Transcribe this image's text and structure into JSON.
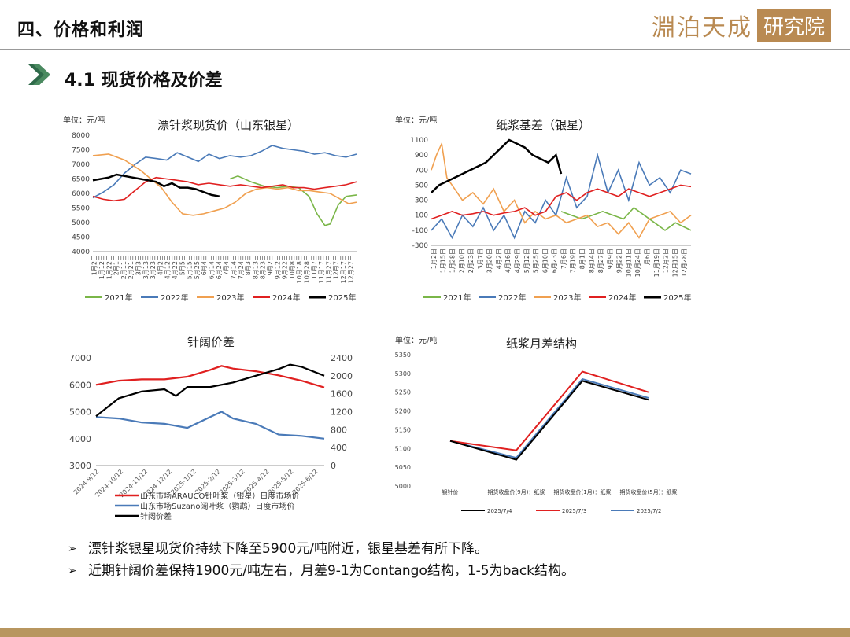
{
  "header": {
    "title": "四、价格和利润",
    "brand_script": "淵泊天成",
    "brand_box": "研究院"
  },
  "section": {
    "title": "4.1 现货价格及价差"
  },
  "colors": {
    "y2021": "#7ab648",
    "y2022": "#4a7ab8",
    "y2023": "#f0a050",
    "y2024": "#e02020",
    "y2025": "#000000",
    "brand": "#b98a52"
  },
  "chart_data": [
    {
      "id": "spot",
      "type": "line",
      "title": "漂针浆现货价（山东银星）",
      "unit": "单位：元/吨",
      "ylim": [
        4000,
        8000
      ],
      "yticks": [
        4000,
        4500,
        5000,
        5500,
        6000,
        6500,
        7000,
        7500,
        8000
      ],
      "xlabels": [
        "1月2日",
        "1月12日",
        "1月22日",
        "2月1日",
        "2月11日",
        "2月21日",
        "3月3日",
        "3月13日",
        "3月23日",
        "4月2日",
        "4月12日",
        "4月22日",
        "5月5日",
        "5月15日",
        "5月25日",
        "6月4日",
        "6月14日",
        "6月24日",
        "7月4日",
        "7月14日",
        "7月24日",
        "8月3日",
        "8月13日",
        "8月23日",
        "9月2日",
        "9月12日",
        "9月22日",
        "10月8日",
        "10月18日",
        "10月28日",
        "11月7日",
        "11月17日",
        "11月27日",
        "12月7日",
        "12月17日",
        "12月27日"
      ],
      "legend": [
        "2021年",
        "2022年",
        "2023年",
        "2024年",
        "2025年"
      ],
      "series": [
        {
          "name": "2021年",
          "x": [
            0.52,
            0.55,
            0.6,
            0.65,
            0.7,
            0.74,
            0.78,
            0.82,
            0.85,
            0.88,
            0.9,
            0.93,
            0.96,
            1.0
          ],
          "values": [
            6500,
            6600,
            6400,
            6250,
            6200,
            6250,
            6200,
            5900,
            5300,
            4900,
            4950,
            5600,
            5900,
            5950
          ]
        },
        {
          "name": "2022年",
          "x": [
            0,
            0.04,
            0.08,
            0.12,
            0.16,
            0.2,
            0.24,
            0.28,
            0.32,
            0.36,
            0.4,
            0.44,
            0.48,
            0.52,
            0.56,
            0.6,
            0.64,
            0.68,
            0.72,
            0.76,
            0.8,
            0.84,
            0.88,
            0.92,
            0.96,
            1.0
          ],
          "values": [
            5850,
            6050,
            6300,
            6700,
            7000,
            7250,
            7200,
            7150,
            7400,
            7250,
            7100,
            7350,
            7200,
            7300,
            7250,
            7300,
            7450,
            7650,
            7550,
            7500,
            7450,
            7350,
            7400,
            7300,
            7250,
            7350
          ]
        },
        {
          "name": "2023年",
          "x": [
            0,
            0.06,
            0.12,
            0.18,
            0.22,
            0.26,
            0.3,
            0.34,
            0.38,
            0.42,
            0.46,
            0.5,
            0.54,
            0.58,
            0.62,
            0.66,
            0.7,
            0.74,
            0.78,
            0.82,
            0.86,
            0.9,
            0.94,
            0.97,
            1.0
          ],
          "values": [
            7300,
            7350,
            7150,
            6800,
            6500,
            6200,
            5700,
            5300,
            5250,
            5300,
            5400,
            5500,
            5700,
            6000,
            6150,
            6200,
            6150,
            6200,
            6100,
            6100,
            6050,
            6000,
            5800,
            5650,
            5700
          ]
        },
        {
          "name": "2024年",
          "x": [
            0,
            0.04,
            0.08,
            0.12,
            0.16,
            0.2,
            0.24,
            0.28,
            0.32,
            0.36,
            0.4,
            0.44,
            0.48,
            0.52,
            0.56,
            0.6,
            0.64,
            0.68,
            0.72,
            0.76,
            0.8,
            0.84,
            0.88,
            0.92,
            0.96,
            1.0
          ],
          "values": [
            5900,
            5800,
            5750,
            5800,
            6100,
            6400,
            6550,
            6500,
            6450,
            6400,
            6300,
            6350,
            6300,
            6250,
            6300,
            6250,
            6200,
            6250,
            6300,
            6200,
            6200,
            6150,
            6200,
            6250,
            6300,
            6400
          ]
        },
        {
          "name": "2025年",
          "x": [
            0,
            0.03,
            0.06,
            0.09,
            0.12,
            0.15,
            0.18,
            0.21,
            0.24,
            0.27,
            0.3,
            0.33,
            0.36,
            0.39,
            0.42,
            0.45,
            0.48
          ],
          "values": [
            6450,
            6500,
            6550,
            6650,
            6600,
            6550,
            6500,
            6450,
            6400,
            6250,
            6350,
            6200,
            6200,
            6150,
            6050,
            5950,
            5900
          ]
        }
      ]
    },
    {
      "id": "basis",
      "type": "line",
      "title": "纸浆基差（银星）",
      "unit": "单位：元/吨",
      "ylim": [
        -300,
        1100
      ],
      "yticks": [
        -300,
        -100,
        100,
        300,
        500,
        700,
        900,
        1100
      ],
      "xlabels": [
        "1月2日",
        "1月15日",
        "1月28日",
        "2月10日",
        "2月23日",
        "3月7日",
        "3月20日",
        "4月2日",
        "4月16日",
        "4月29日",
        "5月12日",
        "5月25日",
        "6月10日",
        "6月23日",
        "7月6日",
        "7月19日",
        "8月1日",
        "8月14日",
        "8月27日",
        "9月9日",
        "9月22日",
        "10月11日",
        "10月24日",
        "11月6日",
        "11月19日",
        "12月2日",
        "12月15日",
        "12月28日"
      ],
      "legend": [
        "2021年",
        "2022年",
        "2023年",
        "2024年",
        "2025年"
      ],
      "series": [
        {
          "name": "2021年",
          "x": [
            0.5,
            0.54,
            0.58,
            0.62,
            0.66,
            0.7,
            0.74,
            0.78,
            0.82,
            0.86,
            0.9,
            0.94,
            0.97,
            1.0
          ],
          "values": [
            150,
            100,
            50,
            100,
            150,
            100,
            50,
            200,
            100,
            0,
            -100,
            0,
            -50,
            -100
          ]
        },
        {
          "name": "2022年",
          "x": [
            0,
            0.04,
            0.08,
            0.12,
            0.16,
            0.2,
            0.24,
            0.28,
            0.32,
            0.36,
            0.4,
            0.44,
            0.48,
            0.52,
            0.56,
            0.6,
            0.64,
            0.68,
            0.72,
            0.76,
            0.8,
            0.84,
            0.88,
            0.92,
            0.96,
            1.0
          ],
          "values": [
            -100,
            50,
            -200,
            100,
            -50,
            200,
            -100,
            100,
            -200,
            150,
            0,
            300,
            100,
            600,
            200,
            350,
            900,
            400,
            700,
            300,
            800,
            500,
            600,
            400,
            700,
            650
          ]
        },
        {
          "name": "2023年",
          "x": [
            0,
            0.02,
            0.04,
            0.06,
            0.08,
            0.12,
            0.16,
            0.2,
            0.24,
            0.28,
            0.32,
            0.36,
            0.4,
            0.44,
            0.48,
            0.52,
            0.56,
            0.6,
            0.64,
            0.68,
            0.72,
            0.76,
            0.8,
            0.84,
            0.88,
            0.92,
            0.96,
            1.0
          ],
          "values": [
            700,
            900,
            1050,
            600,
            500,
            300,
            400,
            250,
            450,
            150,
            300,
            0,
            150,
            50,
            100,
            0,
            50,
            100,
            -50,
            0,
            -150,
            0,
            -200,
            50,
            100,
            150,
            0,
            100
          ]
        },
        {
          "name": "2024年",
          "x": [
            0,
            0.04,
            0.08,
            0.12,
            0.16,
            0.2,
            0.24,
            0.28,
            0.32,
            0.36,
            0.4,
            0.44,
            0.48,
            0.52,
            0.56,
            0.6,
            0.64,
            0.68,
            0.72,
            0.76,
            0.8,
            0.84,
            0.88,
            0.92,
            0.96,
            1.0
          ],
          "values": [
            50,
            100,
            150,
            100,
            120,
            150,
            100,
            130,
            150,
            200,
            100,
            150,
            350,
            400,
            300,
            400,
            450,
            400,
            350,
            450,
            400,
            350,
            400,
            450,
            500,
            480
          ]
        },
        {
          "name": "2025年",
          "x": [
            0,
            0.03,
            0.06,
            0.09,
            0.12,
            0.15,
            0.18,
            0.21,
            0.24,
            0.27,
            0.3,
            0.33,
            0.36,
            0.39,
            0.42,
            0.45,
            0.48,
            0.5
          ],
          "values": [
            400,
            500,
            550,
            600,
            650,
            700,
            750,
            800,
            900,
            1000,
            1100,
            1050,
            1000,
            900,
            850,
            800,
            900,
            650
          ]
        }
      ]
    },
    {
      "id": "spread",
      "type": "line",
      "title": "针阔价差",
      "ylim": [
        3000,
        7000
      ],
      "yticks": [
        3000,
        4000,
        5000,
        6000,
        7000
      ],
      "y2lim": [
        0,
        2400
      ],
      "y2ticks": [
        0,
        400,
        800,
        1200,
        1600,
        2000,
        2400
      ],
      "xlabels": [
        "2024-9/12",
        "2024-10/12",
        "2024-11/12",
        "2024-12/12",
        "2025-1/12",
        "2025-2/12",
        "2025-3/12",
        "2025-4/12",
        "2025-5/12",
        "2025-6/12"
      ],
      "legend": [
        "山东市场ARAUCO针叶浆（银星）日度市场价",
        "山东市场Suzano阔叶浆（鹦鹉）日度市场价",
        "针阔价差"
      ],
      "series": [
        {
          "name": "山东市场ARAUCO针叶浆（银星）日度市场价",
          "axis": "left",
          "x": [
            0,
            0.1,
            0.2,
            0.3,
            0.4,
            0.5,
            0.55,
            0.6,
            0.7,
            0.8,
            0.9,
            1.0
          ],
          "values": [
            6000,
            6150,
            6200,
            6200,
            6300,
            6550,
            6700,
            6600,
            6500,
            6350,
            6150,
            5900
          ]
        },
        {
          "name": "山东市场Suzano阔叶浆（鹦鹉）日度市场价",
          "axis": "left",
          "x": [
            0,
            0.1,
            0.2,
            0.3,
            0.4,
            0.5,
            0.55,
            0.6,
            0.7,
            0.8,
            0.9,
            1.0
          ],
          "values": [
            4800,
            4750,
            4600,
            4550,
            4400,
            4800,
            5000,
            4750,
            4550,
            4150,
            4100,
            4000
          ]
        },
        {
          "name": "针阔价差",
          "axis": "right",
          "x": [
            0,
            0.05,
            0.1,
            0.2,
            0.3,
            0.35,
            0.4,
            0.5,
            0.6,
            0.7,
            0.8,
            0.85,
            0.9,
            0.95,
            1.0
          ],
          "values": [
            1100,
            1300,
            1500,
            1650,
            1700,
            1550,
            1750,
            1750,
            1850,
            2000,
            2150,
            2250,
            2200,
            2100,
            2000
          ]
        }
      ]
    },
    {
      "id": "monthly",
      "type": "line",
      "title": "纸浆月差结构",
      "unit": "单位：元/吨",
      "ylim": [
        5000,
        5350
      ],
      "yticks": [
        5000,
        5050,
        5100,
        5150,
        5200,
        5250,
        5300,
        5350
      ],
      "categories": [
        "银针价",
        "期货收盘价(9月)：纸浆",
        "期货收盘价(1月)：纸浆",
        "期货收盘价(5月)：纸浆"
      ],
      "series": [
        {
          "name": "2025/7/4",
          "values": [
            5120,
            5070,
            5280,
            5230
          ]
        },
        {
          "name": "2025/7/3",
          "values": [
            5120,
            5095,
            5305,
            5250
          ]
        },
        {
          "name": "2025/7/2",
          "values": [
            5120,
            5075,
            5285,
            5235
          ]
        }
      ]
    }
  ],
  "bullets": [
    "漂针浆银星现货价持续下降至5900元/吨附近，银星基差有所下降。",
    "近期针阔价差保持1900元/吨左右，月差9-1为Contango结构，1-5为back结构。"
  ]
}
